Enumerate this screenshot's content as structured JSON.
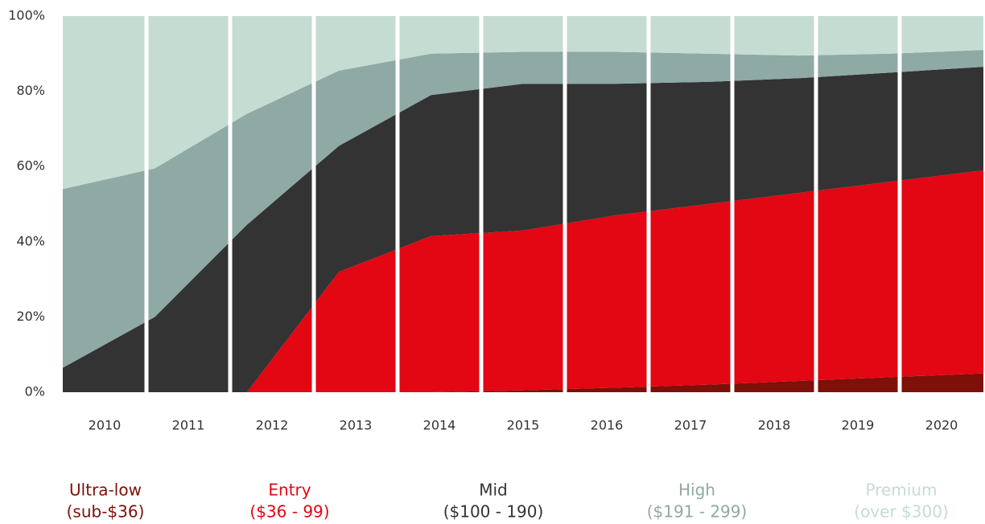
{
  "chart_data": {
    "type": "stacked_area",
    "categories": [
      "2010",
      "2011",
      "2012",
      "2013",
      "2014",
      "2015",
      "2016",
      "2017",
      "2018",
      "2019",
      "2020"
    ],
    "ylim": [
      0,
      100
    ],
    "yticks": [
      {
        "value": 0,
        "label": "0%"
      },
      {
        "value": 20,
        "label": "20%"
      },
      {
        "value": 40,
        "label": "40%"
      },
      {
        "value": 60,
        "label": "60%"
      },
      {
        "value": 80,
        "label": "80%"
      },
      {
        "value": 100,
        "label": "100%"
      }
    ],
    "series": [
      {
        "name": "Ultra-low",
        "range": "(sub-$36)",
        "color": "#7d1008",
        "values": [
          0,
          0,
          0,
          0,
          0,
          0.5,
          1.2,
          2,
          3,
          4,
          5
        ]
      },
      {
        "name": "Entry",
        "range": "($36 - 99)",
        "color": "#e30613",
        "values": [
          0,
          0,
          0,
          32,
          41.5,
          42.5,
          45.8,
          48,
          50,
          52,
          54
        ]
      },
      {
        "name": "Mid",
        "range": "($100 - 190)",
        "color": "#333333",
        "values": [
          6.5,
          20,
          44.5,
          33.5,
          37.5,
          39,
          35,
          32.5,
          30.5,
          29,
          27.5
        ]
      },
      {
        "name": "High",
        "range": "($191 - 299)",
        "color": "#8fa9a5",
        "values": [
          47.5,
          39.5,
          29.5,
          20,
          11,
          8.5,
          8.5,
          7.5,
          6,
          5,
          4.5
        ]
      },
      {
        "name": "Premium",
        "range": "(over $300)",
        "color": "#c5dcd3",
        "values": [
          46,
          40.5,
          26,
          14.5,
          10,
          9.5,
          9.5,
          10,
          10.5,
          10,
          9
        ]
      }
    ]
  }
}
